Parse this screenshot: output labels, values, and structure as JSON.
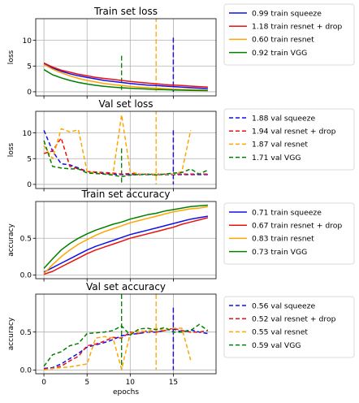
{
  "colors": {
    "squeeze": "#1010e8",
    "resnet_drop": "#e81010",
    "resnet": "#ffa500",
    "vgg": "#008000",
    "grid": "#b0b0b0"
  },
  "chart_data": [
    {
      "type": "line",
      "title": "Train set loss",
      "ylabel": "loss",
      "xlabel": "",
      "xlim": [
        -0.95,
        19.95
      ],
      "ylim": [
        -0.8,
        14.2
      ],
      "yticks": [
        0,
        5,
        10
      ],
      "xticks": [
        0,
        5,
        10,
        15
      ],
      "show_xticklabels": false,
      "grid": true,
      "legend_position": "outside-right",
      "vlines": [
        {
          "x": 9,
          "ymin": 0,
          "ymax": 7,
          "style": "dashed",
          "color_key": "vgg"
        },
        {
          "x": 13,
          "ymin": 0,
          "ymax": 14.5,
          "style": "dashed",
          "color_key": "resnet"
        },
        {
          "x": 15,
          "ymin": 0,
          "ymax": 10.5,
          "style": "dashed",
          "color_key": "resnet_drop"
        },
        {
          "x": 15,
          "ymin": 0,
          "ymax": 10.5,
          "style": "dashed",
          "color_key": "squeeze"
        }
      ],
      "series": [
        {
          "name": "0.99 train squeeze",
          "color_key": "squeeze",
          "style": "solid",
          "x": [
            0,
            1,
            2,
            3,
            4,
            5,
            6,
            7,
            8,
            9,
            10,
            11,
            12,
            13,
            14,
            15,
            16,
            17,
            18,
            19
          ],
          "values": [
            5.4,
            4.6,
            4.0,
            3.5,
            3.1,
            2.8,
            2.5,
            2.2,
            2.0,
            1.8,
            1.6,
            1.45,
            1.3,
            1.2,
            1.1,
            1.0,
            0.9,
            0.8,
            0.7,
            0.6
          ]
        },
        {
          "name": "1.18 train resnet + drop",
          "color_key": "resnet_drop",
          "style": "solid",
          "x": [
            0,
            1,
            2,
            3,
            4,
            5,
            6,
            7,
            8,
            9,
            10,
            11,
            12,
            13,
            14,
            15,
            16,
            17,
            18,
            19
          ],
          "values": [
            5.6,
            4.8,
            4.2,
            3.8,
            3.4,
            3.1,
            2.8,
            2.6,
            2.4,
            2.2,
            2.0,
            1.85,
            1.7,
            1.55,
            1.4,
            1.3,
            1.2,
            1.1,
            1.0,
            0.9
          ]
        },
        {
          "name": "0.60 train resnet",
          "color_key": "resnet",
          "style": "solid",
          "x": [
            0,
            1,
            2,
            3,
            4,
            5,
            6,
            7,
            8,
            9,
            10,
            11,
            12,
            13,
            14,
            15,
            16,
            17,
            18,
            19
          ],
          "values": [
            5.3,
            4.4,
            3.7,
            3.1,
            2.6,
            2.2,
            1.9,
            1.6,
            1.4,
            1.2,
            1.05,
            0.9,
            0.8,
            0.7,
            0.6,
            0.5,
            0.45,
            0.4,
            0.35,
            0.3
          ]
        },
        {
          "name": "0.92 train VGG",
          "color_key": "vgg",
          "style": "solid",
          "x": [
            0,
            1,
            2,
            3,
            4,
            5,
            6,
            7,
            8,
            9,
            10,
            11,
            12,
            13,
            14,
            15,
            16,
            17,
            18,
            19
          ],
          "values": [
            4.3,
            3.3,
            2.7,
            2.2,
            1.8,
            1.5,
            1.25,
            1.05,
            0.9,
            0.78,
            0.68,
            0.6,
            0.52,
            0.45,
            0.4,
            0.35,
            0.3,
            0.27,
            0.24,
            0.22
          ]
        }
      ]
    },
    {
      "type": "line",
      "title": "Val set loss",
      "ylabel": "loss",
      "xlabel": "",
      "xlim": [
        -0.95,
        19.95
      ],
      "ylim": [
        -0.8,
        14.2
      ],
      "yticks": [
        0,
        5,
        10
      ],
      "xticks": [
        0,
        5,
        10,
        15
      ],
      "show_xticklabels": false,
      "grid": true,
      "legend_position": "outside-right",
      "vlines": [
        {
          "x": 9,
          "ymin": 0,
          "ymax": 7,
          "style": "dashed",
          "color_key": "vgg"
        },
        {
          "x": 13,
          "ymin": 0,
          "ymax": 14.5,
          "style": "dashed",
          "color_key": "resnet"
        },
        {
          "x": 15,
          "ymin": 0,
          "ymax": 10.5,
          "style": "dashed",
          "color_key": "resnet_drop"
        },
        {
          "x": 15,
          "ymin": 0,
          "ymax": 10.5,
          "style": "dashed",
          "color_key": "squeeze"
        }
      ],
      "series": [
        {
          "name": "1.88 val squeeze",
          "color_key": "squeeze",
          "style": "dashed",
          "x": [
            0,
            1,
            2,
            3,
            4,
            5,
            6,
            7,
            8,
            9,
            10,
            11,
            12,
            13,
            14,
            15,
            16,
            17,
            18,
            19
          ],
          "values": [
            10.5,
            6.5,
            4.0,
            3.8,
            3.2,
            2.5,
            2.3,
            2.1,
            2.0,
            1.9,
            1.9,
            1.9,
            1.9,
            1.9,
            1.9,
            1.9,
            1.9,
            1.9,
            1.9,
            1.9
          ]
        },
        {
          "name": "1.94 val resnet + drop",
          "color_key": "resnet_drop",
          "style": "dashed",
          "x": [
            0,
            1,
            2,
            3,
            4,
            5,
            6,
            7,
            8,
            9,
            10,
            11,
            12,
            13,
            14,
            15,
            16,
            17,
            18,
            19
          ],
          "values": [
            6.0,
            6.5,
            9.0,
            3.5,
            3.0,
            2.5,
            2.4,
            2.3,
            2.2,
            2.0,
            2.1,
            2.0,
            2.0,
            2.0,
            2.0,
            2.0,
            2.0,
            2.0,
            2.0,
            2.0
          ]
        },
        {
          "name": "1.87 val resnet",
          "color_key": "resnet",
          "style": "dashed",
          "x": [
            0,
            1,
            2,
            3,
            4,
            5,
            6,
            7,
            8,
            9,
            10,
            11,
            12,
            13,
            14,
            15,
            16,
            17
          ],
          "values": [
            7.5,
            5.0,
            10.8,
            10.2,
            10.6,
            2.5,
            2.2,
            2.0,
            2.0,
            13.5,
            2.5,
            2.0,
            2.0,
            2.0,
            2.0,
            2.0,
            2.5,
            10.5
          ]
        },
        {
          "name": "1.71 val VGG",
          "color_key": "vgg",
          "style": "dashed",
          "x": [
            0,
            1,
            2,
            3,
            4,
            5,
            6,
            7,
            8,
            9,
            10,
            11,
            12,
            13,
            14,
            15,
            16,
            17,
            18,
            19
          ],
          "values": [
            8.5,
            3.5,
            3.2,
            3.0,
            3.0,
            2.2,
            2.1,
            2.0,
            1.8,
            1.5,
            1.8,
            1.9,
            2.0,
            1.8,
            2.0,
            2.2,
            2.3,
            3.0,
            2.0,
            2.8
          ]
        }
      ]
    },
    {
      "type": "line",
      "title": "Train set accuracy",
      "ylabel": "accuracy",
      "xlabel": "",
      "xlim": [
        -0.95,
        19.95
      ],
      "ylim": [
        -0.05,
        1.0
      ],
      "yticks": [
        0.0,
        0.5
      ],
      "xticks": [
        0,
        5,
        10,
        15
      ],
      "show_xticklabels": false,
      "grid": true,
      "legend_position": "outside-right",
      "vlines": [],
      "series": [
        {
          "name": "0.71 train squeeze",
          "color_key": "squeeze",
          "style": "solid",
          "x": [
            0,
            1,
            2,
            3,
            4,
            5,
            6,
            7,
            8,
            9,
            10,
            11,
            12,
            13,
            14,
            15,
            16,
            17,
            18,
            19
          ],
          "values": [
            0.04,
            0.1,
            0.16,
            0.22,
            0.28,
            0.34,
            0.39,
            0.43,
            0.47,
            0.51,
            0.55,
            0.58,
            0.61,
            0.64,
            0.67,
            0.7,
            0.73,
            0.76,
            0.78,
            0.8
          ]
        },
        {
          "name": "0.67 train resnet + drop",
          "color_key": "resnet_drop",
          "style": "solid",
          "x": [
            0,
            1,
            2,
            3,
            4,
            5,
            6,
            7,
            8,
            9,
            10,
            11,
            12,
            13,
            14,
            15,
            16,
            17,
            18,
            19
          ],
          "values": [
            0.01,
            0.05,
            0.11,
            0.17,
            0.23,
            0.29,
            0.34,
            0.38,
            0.42,
            0.46,
            0.5,
            0.53,
            0.56,
            0.59,
            0.62,
            0.65,
            0.69,
            0.72,
            0.75,
            0.78
          ]
        },
        {
          "name": "0.83 train resnet",
          "color_key": "resnet",
          "style": "solid",
          "x": [
            0,
            1,
            2,
            3,
            4,
            5,
            6,
            7,
            8,
            9,
            10,
            11,
            12,
            13,
            14,
            15,
            16,
            17,
            18,
            19
          ],
          "values": [
            0.02,
            0.14,
            0.25,
            0.34,
            0.42,
            0.48,
            0.54,
            0.59,
            0.63,
            0.67,
            0.71,
            0.74,
            0.77,
            0.8,
            0.83,
            0.86,
            0.88,
            0.9,
            0.91,
            0.93
          ]
        },
        {
          "name": "0.73 train VGG",
          "color_key": "vgg",
          "style": "solid",
          "x": [
            0,
            1,
            2,
            3,
            4,
            5,
            6,
            7,
            8,
            9,
            10,
            11,
            12,
            13,
            14,
            15,
            16,
            17,
            18,
            19
          ],
          "values": [
            0.09,
            0.22,
            0.34,
            0.43,
            0.5,
            0.56,
            0.61,
            0.65,
            0.69,
            0.72,
            0.76,
            0.79,
            0.82,
            0.84,
            0.87,
            0.89,
            0.91,
            0.93,
            0.94,
            0.95
          ]
        }
      ]
    },
    {
      "type": "line",
      "title": "Val set accuracy",
      "ylabel": "accuracy",
      "xlabel": "epochs",
      "xlim": [
        -0.95,
        19.95
      ],
      "ylim": [
        -0.05,
        1.0
      ],
      "yticks": [
        0.0,
        0.5
      ],
      "xticks": [
        0,
        5,
        10,
        15
      ],
      "show_xticklabels": true,
      "grid": true,
      "legend_position": "outside-right",
      "vlines": [
        {
          "x": 9,
          "ymin": 0,
          "ymax": 1.0,
          "style": "dashed",
          "color_key": "vgg"
        },
        {
          "x": 13,
          "ymin": 0,
          "ymax": 1.0,
          "style": "dashed",
          "color_key": "resnet"
        },
        {
          "x": 15,
          "ymin": 0,
          "ymax": 0.82,
          "style": "dashed",
          "color_key": "resnet_drop"
        },
        {
          "x": 15,
          "ymin": 0,
          "ymax": 0.82,
          "style": "dashed",
          "color_key": "squeeze"
        }
      ],
      "series": [
        {
          "name": "0.56 val squeeze",
          "color_key": "squeeze",
          "style": "dashed",
          "x": [
            0,
            1,
            2,
            3,
            4,
            5,
            6,
            7,
            8,
            9,
            10,
            11,
            12,
            13,
            14,
            15,
            16,
            17,
            18,
            19
          ],
          "values": [
            0.02,
            0.03,
            0.08,
            0.15,
            0.22,
            0.3,
            0.33,
            0.36,
            0.4,
            0.45,
            0.47,
            0.48,
            0.5,
            0.5,
            0.52,
            0.54,
            0.5,
            0.53,
            0.5,
            0.48
          ]
        },
        {
          "name": "0.52 val resnet + drop",
          "color_key": "resnet_drop",
          "style": "dashed",
          "x": [
            0,
            1,
            2,
            3,
            4,
            5,
            6,
            7,
            8,
            9,
            10,
            11,
            12,
            13,
            14,
            15,
            16,
            17,
            18,
            19
          ],
          "values": [
            0.01,
            0.02,
            0.05,
            0.12,
            0.18,
            0.32,
            0.34,
            0.38,
            0.43,
            0.42,
            0.5,
            0.48,
            0.52,
            0.5,
            0.52,
            0.55,
            0.52,
            0.5,
            0.5,
            0.52
          ]
        },
        {
          "name": "0.55 val resnet",
          "color_key": "resnet",
          "style": "dashed",
          "x": [
            0,
            1,
            2,
            3,
            4,
            5,
            6,
            7,
            8,
            9,
            10,
            11,
            12,
            13,
            14,
            15,
            16,
            17
          ],
          "values": [
            0.0,
            0.02,
            0.03,
            0.04,
            0.06,
            0.08,
            0.42,
            0.44,
            0.42,
            0.01,
            0.48,
            0.52,
            0.5,
            0.55,
            0.52,
            0.55,
            0.55,
            0.13
          ]
        },
        {
          "name": "0.59 val VGG",
          "color_key": "vgg",
          "style": "dashed",
          "x": [
            0,
            1,
            2,
            3,
            4,
            5,
            6,
            7,
            8,
            9,
            10,
            11,
            12,
            13,
            14,
            15,
            16,
            17,
            18,
            19
          ],
          "values": [
            0.05,
            0.2,
            0.24,
            0.32,
            0.35,
            0.48,
            0.49,
            0.5,
            0.52,
            0.58,
            0.46,
            0.54,
            0.55,
            0.53,
            0.56,
            0.5,
            0.5,
            0.52,
            0.6,
            0.52
          ]
        }
      ]
    }
  ]
}
